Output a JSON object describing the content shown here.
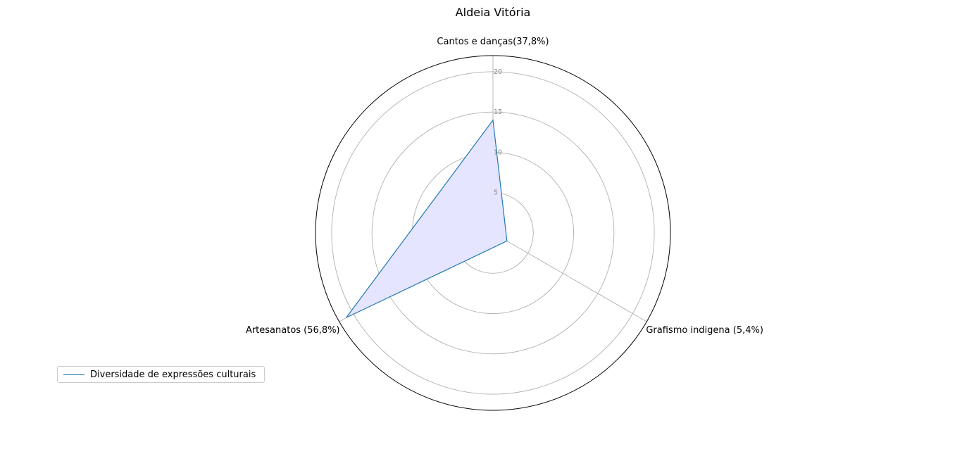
{
  "chart_data": {
    "type": "radar",
    "title": "Aldeia Vitória",
    "categories": [
      "Cantos e danças(37,8%)",
      "Grafismo indigena (5,4%)",
      "Artesanatos (56,8%)"
    ],
    "series": [
      {
        "name": "Diversidade de expressões culturais",
        "values": [
          14,
          2,
          21
        ],
        "line_color": "#1f77b4",
        "fill_color": "#e5e5ff"
      }
    ],
    "rlim": [
      0,
      22
    ],
    "radial_ticks": [
      5,
      10,
      15,
      20
    ],
    "radial_tick_labels": [
      "5",
      "10",
      "15",
      "20"
    ],
    "grid": true,
    "legend_position": "lower-left"
  }
}
